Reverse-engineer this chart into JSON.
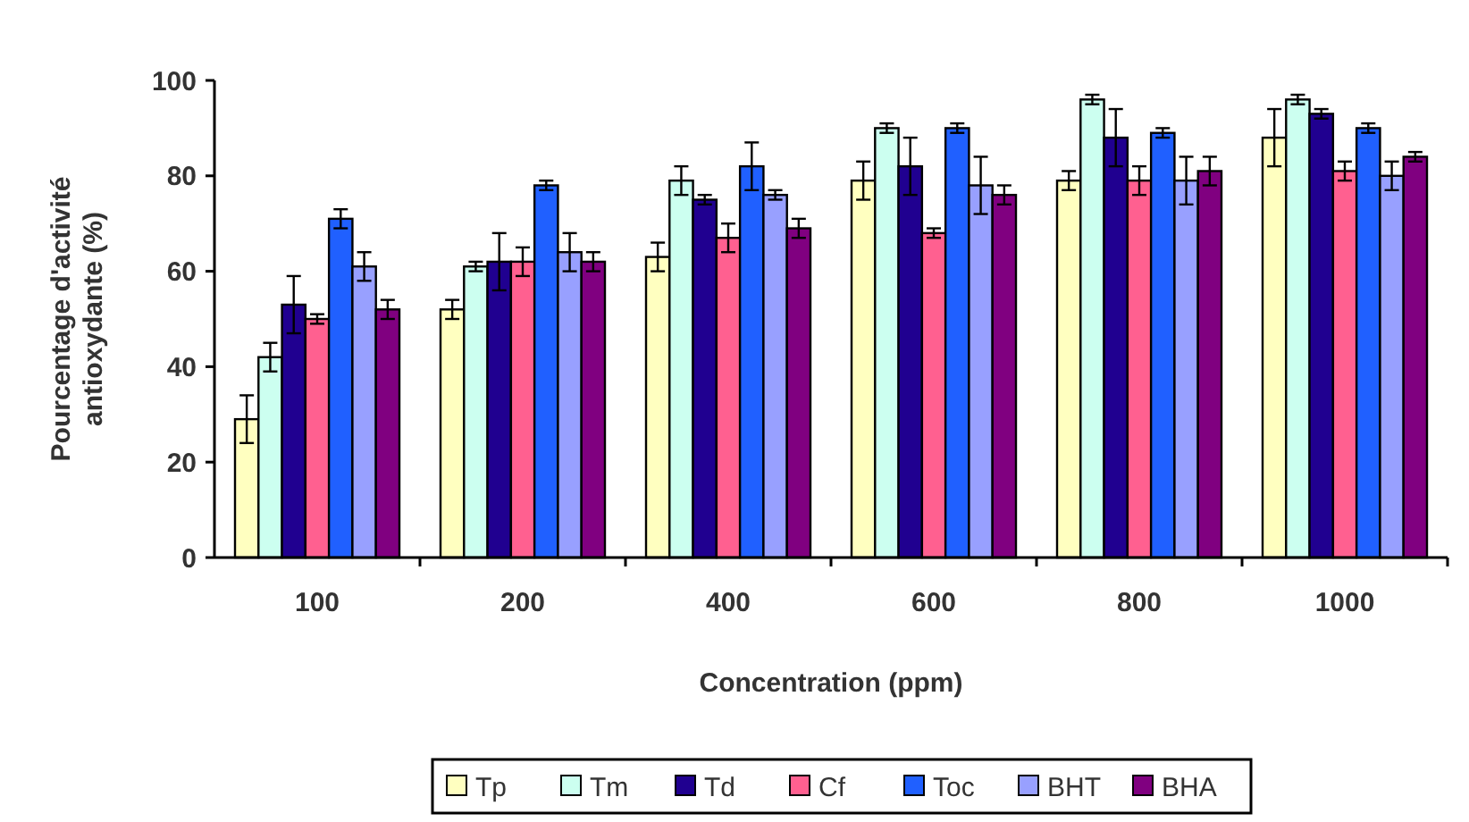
{
  "chart_data": {
    "type": "bar",
    "xlabel": "Concentration (ppm)",
    "ylabel": "Pourcentage d'activité\nantioxydante (%)",
    "categories": [
      "100",
      "200",
      "400",
      "600",
      "800",
      "1000"
    ],
    "ylim": [
      0,
      100
    ],
    "yticks": [
      0,
      20,
      40,
      60,
      80,
      100
    ],
    "grid": false,
    "legend": "bottom",
    "series": [
      {
        "name": "Tp",
        "color": "#ffffc0",
        "values": [
          29,
          52,
          63,
          79,
          79,
          88
        ],
        "errors": [
          5,
          2,
          3,
          4,
          2,
          6
        ]
      },
      {
        "name": "Tm",
        "color": "#ccfff0",
        "values": [
          42,
          61,
          79,
          90,
          96,
          96
        ],
        "errors": [
          3,
          1,
          3,
          1,
          1,
          1
        ]
      },
      {
        "name": "Td",
        "color": "#200090",
        "values": [
          53,
          62,
          75,
          82,
          88,
          93
        ],
        "errors": [
          6,
          6,
          1,
          6,
          6,
          1
        ]
      },
      {
        "name": "Cf",
        "color": "#ff6090",
        "values": [
          50,
          62,
          67,
          68,
          79,
          81
        ],
        "errors": [
          1,
          3,
          3,
          1,
          3,
          2
        ]
      },
      {
        "name": "Toc",
        "color": "#2060ff",
        "values": [
          71,
          78,
          82,
          90,
          89,
          90
        ],
        "errors": [
          2,
          1,
          5,
          1,
          1,
          1
        ]
      },
      {
        "name": "BHT",
        "color": "#98a0ff",
        "values": [
          61,
          64,
          76,
          78,
          79,
          80
        ],
        "errors": [
          3,
          4,
          1,
          6,
          5,
          3
        ]
      },
      {
        "name": "BHA",
        "color": "#800080",
        "values": [
          52,
          62,
          69,
          76,
          81,
          84
        ],
        "errors": [
          2,
          2,
          2,
          2,
          3,
          1
        ]
      }
    ]
  }
}
